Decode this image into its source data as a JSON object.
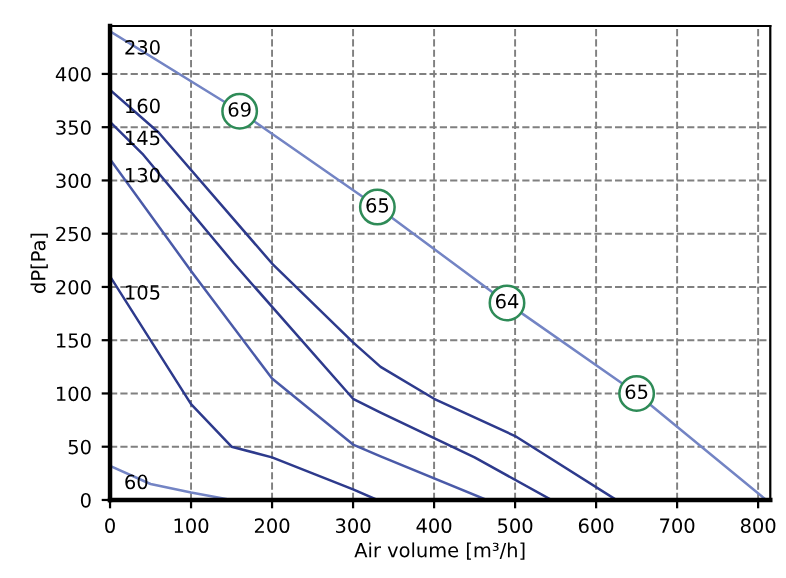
{
  "chart_data": {
    "type": "line",
    "xlabel": "Air volume [m³/h]",
    "ylabel": "dP[Pa]",
    "xlim": [
      0,
      815
    ],
    "ylim": [
      0,
      445
    ],
    "xticks": [
      0,
      100,
      200,
      300,
      400,
      500,
      600,
      700,
      800
    ],
    "yticks": [
      0,
      50,
      100,
      150,
      200,
      250,
      300,
      350,
      400
    ],
    "grid": true,
    "line_style": "solid",
    "series": [
      {
        "color": "#7384c4",
        "x": [
          0,
          160,
          330,
          490,
          650,
          810
        ],
        "values": [
          440,
          365,
          275,
          185,
          100,
          0
        ]
      },
      {
        "color": "#2d3a8c",
        "x": [
          0,
          60,
          200,
          300,
          334,
          400,
          500,
          625
        ],
        "values": [
          385,
          345,
          222,
          148,
          125,
          95,
          60,
          0
        ]
      },
      {
        "color": "#2d3a8c",
        "x": [
          0,
          40,
          153,
          300,
          334,
          450,
          545
        ],
        "values": [
          355,
          325,
          222,
          95,
          82,
          40,
          0
        ]
      },
      {
        "color": "#4a5aa8",
        "x": [
          0,
          100,
          200,
          300,
          334,
          465
        ],
        "values": [
          320,
          215,
          114,
          52,
          41,
          0
        ]
      },
      {
        "color": "#2d3a8c",
        "x": [
          0,
          100,
          150,
          200,
          250,
          300,
          330
        ],
        "values": [
          210,
          90,
          50,
          40,
          25,
          10,
          0
        ]
      },
      {
        "color": "#7384c4",
        "x": [
          0,
          50,
          100,
          150
        ],
        "values": [
          32,
          15,
          7,
          0
        ]
      }
    ],
    "annotations": [
      {
        "text": "230",
        "x": 0,
        "y": 440
      },
      {
        "text": "160",
        "x": 0,
        "y": 385
      },
      {
        "text": "145",
        "x": 0,
        "y": 355
      },
      {
        "text": "130",
        "x": 0,
        "y": 320
      },
      {
        "text": "105",
        "x": 0,
        "y": 210
      },
      {
        "text": "60",
        "x": 0,
        "y": 32
      },
      {
        "text": "69",
        "x": 160,
        "y": 365
      },
      {
        "text": "65",
        "x": 330,
        "y": 275
      },
      {
        "text": "64",
        "x": 490,
        "y": 185
      },
      {
        "text": "65",
        "x": 650,
        "y": 100
      }
    ]
  }
}
